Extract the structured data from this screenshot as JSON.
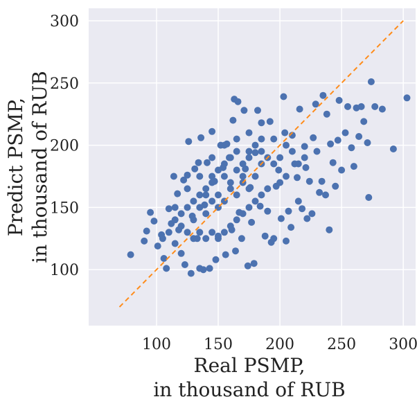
{
  "chart_data": {
    "type": "scatter",
    "xlabel": [
      "Real PSMP,",
      "in thousand of RUB"
    ],
    "ylabel": [
      "Predict PSMP,",
      "in thousand of RUB"
    ],
    "xlim": [
      45,
      310
    ],
    "ylim": [
      55,
      310
    ],
    "xticks": [
      100,
      150,
      200,
      250,
      300
    ],
    "yticks": [
      100,
      150,
      200,
      250,
      300
    ],
    "grid": true,
    "reference_line": {
      "x": [
        70,
        300
      ],
      "y": [
        70,
        300
      ],
      "style": "dashed"
    },
    "colors": {
      "points": "#4c72b0",
      "line": "#ff8c1a",
      "background": "#eaeaf2",
      "grid": "#ffffff"
    },
    "series": [
      {
        "points": [
          [
            79,
            112
          ],
          [
            90,
            123
          ],
          [
            92,
            131
          ],
          [
            95,
            146
          ],
          [
            98,
            139
          ],
          [
            101,
            119
          ],
          [
            104,
            128
          ],
          [
            106,
            109
          ],
          [
            108,
            101
          ],
          [
            110,
            149
          ],
          [
            112,
            137
          ],
          [
            114,
            175
          ],
          [
            115,
            121
          ],
          [
            117,
            161
          ],
          [
            118,
            132
          ],
          [
            120,
            113
          ],
          [
            122,
            172
          ],
          [
            123,
            104
          ],
          [
            125,
            176
          ],
          [
            126,
            203
          ],
          [
            128,
            97
          ],
          [
            129,
            143
          ],
          [
            131,
            181
          ],
          [
            133,
            125
          ],
          [
            134,
            186
          ],
          [
            135,
            101
          ],
          [
            136,
            206
          ],
          [
            138,
            100
          ],
          [
            139,
            152
          ],
          [
            141,
            186
          ],
          [
            143,
            101
          ],
          [
            145,
            211
          ],
          [
            147,
            171
          ],
          [
            148,
            108
          ],
          [
            150,
            127
          ],
          [
            152,
            200
          ],
          [
            154,
            182
          ],
          [
            156,
            112
          ],
          [
            157,
            201
          ],
          [
            159,
            190
          ],
          [
            161,
            132
          ],
          [
            162,
            220
          ],
          [
            163,
            237
          ],
          [
            164,
            115
          ],
          [
            166,
            235
          ],
          [
            167,
            146
          ],
          [
            169,
            125
          ],
          [
            171,
            228
          ],
          [
            172,
            181
          ],
          [
            174,
            103
          ],
          [
            176,
            166
          ],
          [
            177,
            138
          ],
          [
            179,
            105
          ],
          [
            180,
            194
          ],
          [
            182,
            228
          ],
          [
            184,
            151
          ],
          [
            185,
            218
          ],
          [
            188,
            127
          ],
          [
            190,
            147
          ],
          [
            192,
            219
          ],
          [
            193,
            122
          ],
          [
            195,
            125
          ],
          [
            197,
            167
          ],
          [
            199,
            180
          ],
          [
            201,
            141
          ],
          [
            203,
            239
          ],
          [
            204,
            210
          ],
          [
            205,
            123
          ],
          [
            207,
            147
          ],
          [
            209,
            134
          ],
          [
            210,
            208
          ],
          [
            212,
            185
          ],
          [
            214,
            174
          ],
          [
            215,
            155
          ],
          [
            216,
            229
          ],
          [
            218,
            149
          ],
          [
            220,
            199
          ],
          [
            221,
            182
          ],
          [
            222,
            141
          ],
          [
            224,
            171
          ],
          [
            226,
            145
          ],
          [
            227,
            206
          ],
          [
            229,
            233
          ],
          [
            230,
            195
          ],
          [
            232,
            162
          ],
          [
            234,
            171
          ],
          [
            235,
            240
          ],
          [
            237,
            160
          ],
          [
            238,
            225
          ],
          [
            240,
            132
          ],
          [
            241,
            201
          ],
          [
            243,
            186
          ],
          [
            245,
            167
          ],
          [
            247,
            204
          ],
          [
            248,
            236
          ],
          [
            250,
            180
          ],
          [
            253,
            210
          ],
          [
            255,
            231
          ],
          [
            258,
            198
          ],
          [
            260,
            183
          ],
          [
            262,
            230
          ],
          [
            264,
            207
          ],
          [
            266,
            231
          ],
          [
            268,
            219
          ],
          [
            271,
            202
          ],
          [
            272,
            158
          ],
          [
            274,
            251
          ],
          [
            277,
            231
          ],
          [
            283,
            229
          ],
          [
            292,
            197
          ],
          [
            303,
            238
          ],
          [
            140,
            160
          ],
          [
            145,
            170
          ],
          [
            150,
            150
          ],
          [
            155,
            175
          ],
          [
            160,
            165
          ],
          [
            165,
            180
          ],
          [
            170,
            170
          ],
          [
            175,
            190
          ],
          [
            180,
            175
          ],
          [
            185,
            185
          ],
          [
            130,
            140
          ],
          [
            135,
            150
          ],
          [
            140,
            145
          ],
          [
            145,
            155
          ],
          [
            150,
            160
          ],
          [
            155,
            155
          ],
          [
            160,
            170
          ],
          [
            165,
            160
          ],
          [
            170,
            175
          ],
          [
            175,
            165
          ],
          [
            120,
            145
          ],
          [
            125,
            150
          ],
          [
            130,
            155
          ],
          [
            135,
            160
          ],
          [
            140,
            165
          ],
          [
            145,
            175
          ],
          [
            150,
            180
          ],
          [
            155,
            185
          ],
          [
            160,
            190
          ],
          [
            165,
            195
          ],
          [
            170,
            185
          ],
          [
            175,
            195
          ],
          [
            180,
            200
          ],
          [
            185,
            195
          ],
          [
            190,
            190
          ],
          [
            195,
            185
          ],
          [
            200,
            190
          ],
          [
            205,
            200
          ],
          [
            210,
            195
          ],
          [
            200,
            170
          ],
          [
            190,
            165
          ],
          [
            185,
            160
          ],
          [
            180,
            155
          ],
          [
            175,
            150
          ],
          [
            170,
            145
          ],
          [
            165,
            140
          ],
          [
            160,
            135
          ],
          [
            155,
            130
          ],
          [
            150,
            125
          ],
          [
            145,
            130
          ],
          [
            140,
            125
          ],
          [
            135,
            130
          ],
          [
            130,
            125
          ],
          [
            125,
            130
          ],
          [
            120,
            135
          ],
          [
            115,
            140
          ],
          [
            110,
            130
          ],
          [
            105,
            125
          ],
          [
            115,
            150
          ],
          [
            125,
            165
          ],
          [
            135,
            175
          ],
          [
            145,
            190
          ],
          [
            155,
            200
          ],
          [
            165,
            205
          ],
          [
            175,
            210
          ],
          [
            185,
            205
          ],
          [
            195,
            205
          ],
          [
            205,
            175
          ],
          [
            215,
            185
          ],
          [
            220,
            190
          ]
        ]
      }
    ]
  }
}
